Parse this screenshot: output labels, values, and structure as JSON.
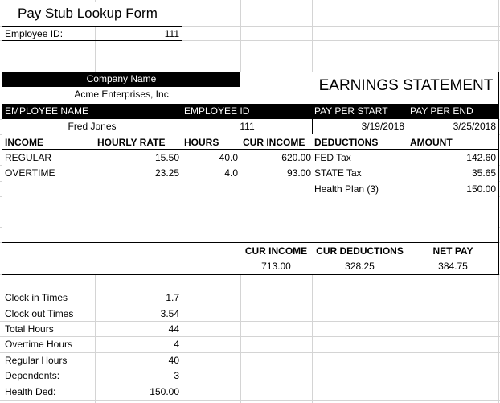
{
  "form": {
    "title": "Pay Stub Lookup Form",
    "employee_id_label": "Employee ID:",
    "employee_id_value": "111"
  },
  "statement": {
    "company_header": "Company Name",
    "company_name": "Acme Enterprises, Inc",
    "title": "EARNINGS STATEMENT",
    "emp_name_header": "EMPLOYEE NAME",
    "emp_id_header": "EMPLOYEE ID",
    "pay_start_header": "PAY PER START",
    "pay_end_header": "PAY PER END",
    "emp_name": "Fred Jones",
    "emp_id": "111",
    "pay_start": "3/19/2018",
    "pay_end": "3/25/2018",
    "col_income": "INCOME",
    "col_rate": "HOURLY RATE",
    "col_hours": "HOURS",
    "col_cur_income": "CUR INCOME",
    "col_deductions": "DEDUCTIONS",
    "col_amount": "AMOUNT",
    "income_rows": [
      {
        "label": "REGULAR",
        "rate": "15.50",
        "hours": "40.0",
        "cur": "620.00"
      },
      {
        "label": "OVERTIME",
        "rate": "23.25",
        "hours": "4.0",
        "cur": "93.00"
      }
    ],
    "deduction_rows": [
      {
        "label": "FED Tax",
        "amount": "142.60"
      },
      {
        "label": "STATE Tax",
        "amount": "35.65"
      },
      {
        "label": "Health Plan (3)",
        "amount": "150.00"
      }
    ],
    "totals": {
      "cur_income_label": "CUR INCOME",
      "cur_deductions_label": "CUR DEDUCTIONS",
      "net_pay_label": "NET PAY",
      "cur_income": "713.00",
      "cur_deductions": "328.25",
      "net_pay": "384.75"
    }
  },
  "details": [
    {
      "label": "Clock in Times",
      "value": "1.7"
    },
    {
      "label": "Clock out Times",
      "value": "3.54"
    },
    {
      "label": "Total Hours",
      "value": "44"
    },
    {
      "label": "Overtime Hours",
      "value": "4"
    },
    {
      "label": "Regular Hours",
      "value": "40"
    },
    {
      "label": "Dependents:",
      "value": "3"
    },
    {
      "label": "Health Ded:",
      "value": "150.00"
    }
  ]
}
